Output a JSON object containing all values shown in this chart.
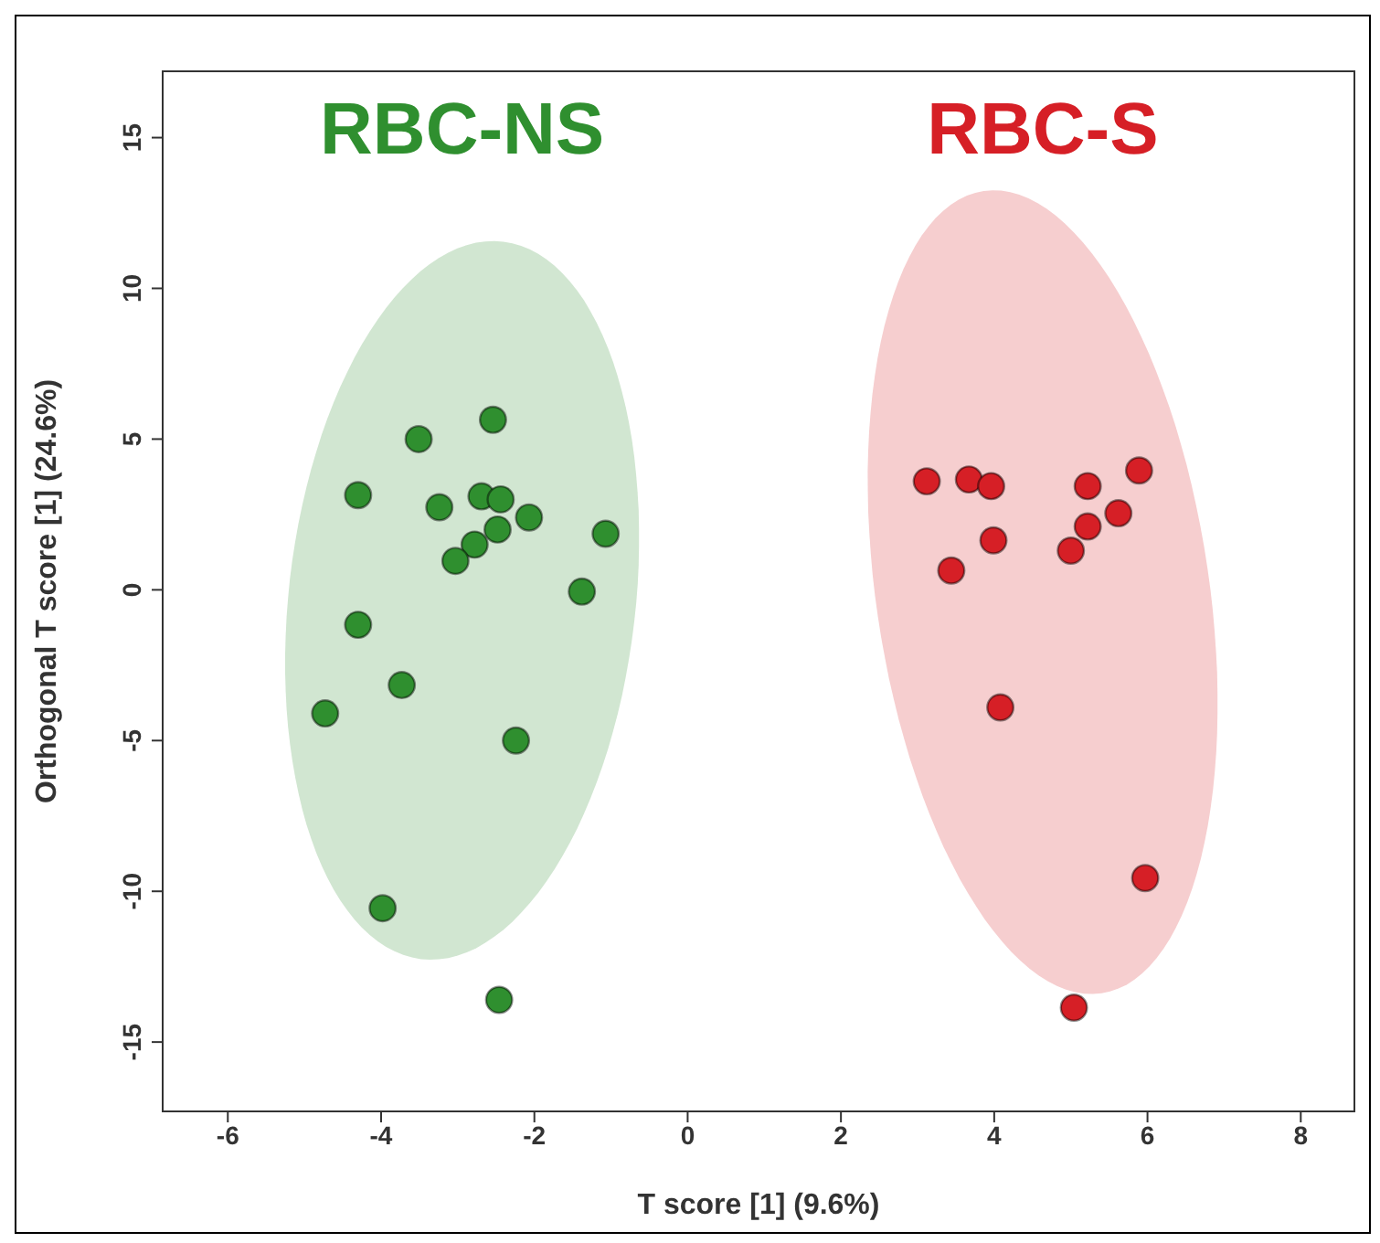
{
  "chart_data": {
    "type": "scatter",
    "xlabel": "T score [1] (9.6%)",
    "ylabel": "Orthogonal T score [1] (24.6%)",
    "xlim": [
      -6.85,
      8.7
    ],
    "ylim": [
      -17.3,
      17.2
    ],
    "xticks": [
      -6,
      -4,
      -2,
      0,
      2,
      4,
      6,
      8
    ],
    "yticks": [
      -15,
      -10,
      -5,
      0,
      5,
      10,
      15
    ],
    "marker": "circle",
    "series": [
      {
        "name": "RBC-NS",
        "color": "#2f8f2f",
        "x": [
          -2.54,
          -3.51,
          -4.3,
          -3.24,
          -2.69,
          -2.44,
          -2.07,
          -2.48,
          -2.78,
          -3.03,
          -1.07,
          -1.38,
          -4.3,
          -3.73,
          -4.73,
          -2.24,
          -3.98,
          -2.46
        ],
        "values": [
          5.64,
          5.0,
          3.14,
          2.74,
          3.1,
          3.0,
          2.4,
          2.0,
          1.5,
          0.96,
          1.86,
          -0.06,
          -1.16,
          -3.16,
          -4.1,
          -5.0,
          -10.56,
          -13.6
        ]
      },
      {
        "name": "RBC-S",
        "color": "#d61f26",
        "x": [
          3.12,
          3.67,
          3.96,
          5.22,
          5.89,
          5.62,
          5.22,
          5.0,
          3.99,
          3.44,
          4.08,
          5.97,
          5.04
        ],
        "values": [
          3.6,
          3.66,
          3.44,
          3.44,
          3.96,
          2.54,
          2.1,
          1.3,
          1.64,
          0.64,
          -3.9,
          -9.56,
          -13.86
        ]
      }
    ]
  }
}
